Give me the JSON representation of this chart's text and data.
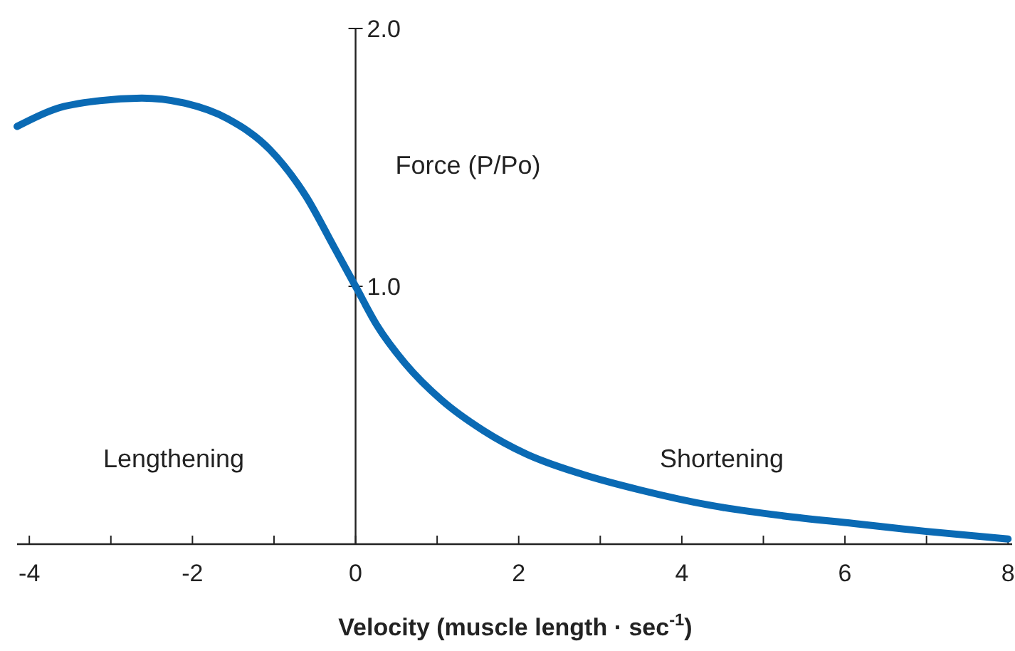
{
  "chart_data": {
    "type": "line",
    "xlabel": "Velocity (muscle length · sec$^{-1}$)",
    "ylabel": "Force (P/Po)",
    "annotations": [
      "Lengthening",
      "Shortening"
    ],
    "xlim": [
      -4.15,
      8.05
    ],
    "ylim": [
      0,
      2.0
    ],
    "xticks": [
      -4,
      {
        "value": -3,
        "label": null
      },
      -2,
      {
        "value": -1,
        "label": null
      },
      0,
      {
        "value": 1,
        "label": null
      },
      2,
      {
        "value": 3,
        "label": null
      },
      4,
      {
        "value": 5,
        "label": null
      },
      6,
      {
        "value": 7,
        "label": null
      },
      8
    ],
    "yticks": [
      {
        "value": 1,
        "label": "1.0"
      },
      {
        "value": 2,
        "label": "2.0"
      }
    ],
    "grid": false,
    "marker": "none",
    "line_style": "solid",
    "series": [
      {
        "color": "#0a6ab4",
        "x": [
          -4.15,
          -3.66,
          -3.14,
          -2.62,
          -2.09,
          -1.57,
          -1.05,
          -0.61,
          -0.26,
          0,
          0.26,
          0.61,
          1.05,
          1.57,
          2.09,
          2.79,
          3.49,
          4.36,
          5.24,
          6.11,
          6.98,
          8.0
        ],
        "values": [
          1.62,
          1.69,
          1.72,
          1.73,
          1.71,
          1.65,
          1.53,
          1.35,
          1.15,
          1.0,
          0.85,
          0.7,
          0.56,
          0.44,
          0.35,
          0.27,
          0.21,
          0.15,
          0.11,
          0.08,
          0.05,
          0.02
        ]
      }
    ]
  }
}
